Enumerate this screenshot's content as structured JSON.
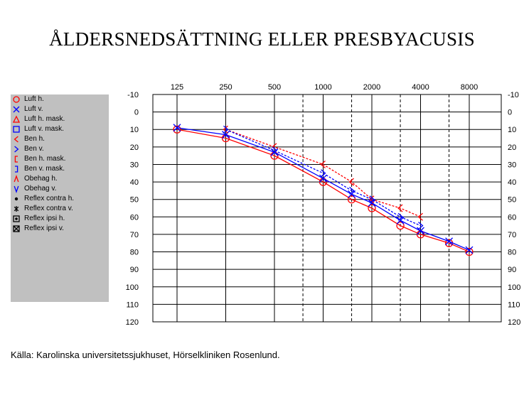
{
  "title": "ÅLDERSNEDSÄTTNING ELLER PRESBYACUSIS",
  "source": "Källa: Karolinska universitetssjukhuset, Hörselkliniken Rosenlund.",
  "legend": [
    {
      "label": "Luft h.",
      "symbol": "circle",
      "color": "#ff0000"
    },
    {
      "label": "Luft v.",
      "symbol": "x",
      "color": "#0000ff"
    },
    {
      "label": "Luft h. mask.",
      "symbol": "triangle",
      "color": "#ff0000"
    },
    {
      "label": "Luft v. mask.",
      "symbol": "square",
      "color": "#0000ff"
    },
    {
      "label": "Ben h.",
      "symbol": "lt",
      "color": "#ff0000"
    },
    {
      "label": "Ben v.",
      "symbol": "gt",
      "color": "#0000ff"
    },
    {
      "label": "Ben h. mask.",
      "symbol": "lbracket",
      "color": "#ff0000"
    },
    {
      "label": "Ben v. mask.",
      "symbol": "rbracket",
      "color": "#0000ff"
    },
    {
      "label": "Obehag h.",
      "symbol": "caret",
      "color": "#ff0000"
    },
    {
      "label": "Obehag v.",
      "symbol": "vee",
      "color": "#0000ff"
    },
    {
      "label": "Reflex contra h.",
      "symbol": "dot",
      "color": "#000000"
    },
    {
      "label": "Reflex contra v.",
      "symbol": "star",
      "color": "#000000"
    },
    {
      "label": "Reflex ipsi h.",
      "symbol": "boxdot",
      "color": "#000000"
    },
    {
      "label": "Reflex ipsi v.",
      "symbol": "boxx",
      "color": "#000000"
    }
  ],
  "chart_data": {
    "type": "line",
    "xscale": "log2",
    "x_ticks": [
      125,
      250,
      500,
      1000,
      2000,
      4000,
      8000
    ],
    "x_dashed": [
      750,
      1500,
      3000,
      6000
    ],
    "y_ticks": [
      -10,
      0,
      10,
      20,
      30,
      40,
      50,
      60,
      70,
      80,
      90,
      100,
      110,
      120
    ],
    "ylim": [
      -10,
      120
    ],
    "y_inverted": true,
    "series": [
      {
        "name": "Luft h.",
        "color": "#ff0000",
        "symbol": "circle",
        "dashed": false,
        "x": [
          125,
          250,
          500,
          1000,
          1500,
          2000,
          3000,
          4000,
          6000,
          8000
        ],
        "y": [
          10,
          15,
          25,
          40,
          50,
          55,
          65,
          70,
          75,
          80
        ]
      },
      {
        "name": "Luft v.",
        "color": "#0000ff",
        "symbol": "x",
        "dashed": false,
        "x": [
          125,
          250,
          500,
          1000,
          1500,
          2000,
          3000,
          4000,
          6000,
          8000
        ],
        "y": [
          9,
          13,
          23,
          38,
          47,
          52,
          62,
          68,
          74,
          79
        ]
      },
      {
        "name": "Ben h.",
        "color": "#ff0000",
        "symbol": "lt",
        "dashed": true,
        "x": [
          250,
          500,
          1000,
          1500,
          2000,
          3000,
          4000
        ],
        "y": [
          10,
          20,
          30,
          40,
          50,
          55,
          60
        ]
      },
      {
        "name": "Ben v.",
        "color": "#0000ff",
        "symbol": "gt",
        "dashed": true,
        "x": [
          250,
          500,
          1000,
          1500,
          2000,
          3000,
          4000
        ],
        "y": [
          10,
          22,
          35,
          45,
          50,
          60,
          65
        ]
      }
    ]
  }
}
